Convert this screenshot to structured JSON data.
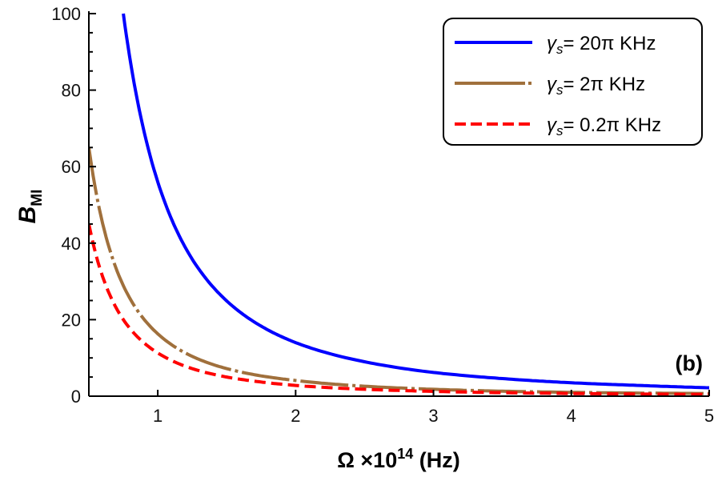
{
  "chart_data": {
    "type": "line",
    "title": "",
    "xlabel": "Ω ×10",
    "xlabel_sup": "14",
    "xlabel_unit": " (Hz)",
    "ylabel": "B",
    "ylabel_sub": "MI",
    "annotation": "(b)",
    "xlim": [
      0.5,
      5
    ],
    "ylim": [
      0,
      100
    ],
    "xticks": [
      1,
      2,
      3,
      4,
      5
    ],
    "yticks": [
      0,
      20,
      40,
      60,
      80,
      100
    ],
    "grid": false,
    "legend_position": "top-right",
    "series": [
      {
        "name": "γs= 20π KHz",
        "label_main": "γ",
        "label_sub": "s",
        "label_rest": "= 20π KHz",
        "color": "#0000ff",
        "style": "solid",
        "x": [
          0.75,
          1,
          1.25,
          1.5,
          1.75,
          2,
          2.5,
          3,
          3.5,
          4,
          4.5,
          5
        ],
        "y": [
          100,
          56,
          35.8,
          24.9,
          18.3,
          14,
          9.0,
          6.2,
          4.6,
          3.5,
          2.8,
          2.2
        ]
      },
      {
        "name": "γs= 2π KHz",
        "label_main": "γ",
        "label_sub": "s",
        "label_rest": "= 2π KHz",
        "color": "#a0703c",
        "style": "long-dash-dot",
        "x": [
          0.5,
          0.75,
          1,
          1.25,
          1.5,
          1.75,
          2,
          2.5,
          3,
          3.5,
          4,
          4.5,
          5
        ],
        "y": [
          65,
          28.9,
          16.3,
          10.4,
          7.2,
          5.3,
          4.1,
          2.6,
          1.8,
          1.3,
          1.0,
          0.8,
          0.7
        ]
      },
      {
        "name": "γs= 0.2π KHz",
        "label_main": "γ",
        "label_sub": "s",
        "label_rest": "= 0.2π KHz",
        "color": "#ff0000",
        "style": "dashed",
        "x": [
          0.5,
          0.75,
          1,
          1.25,
          1.5,
          1.75,
          2,
          2.5,
          3,
          3.5,
          4,
          4.5,
          5
        ],
        "y": [
          45,
          20,
          11.3,
          7.2,
          5.0,
          3.7,
          2.8,
          1.8,
          1.25,
          0.9,
          0.7,
          0.56,
          0.45
        ]
      }
    ]
  }
}
